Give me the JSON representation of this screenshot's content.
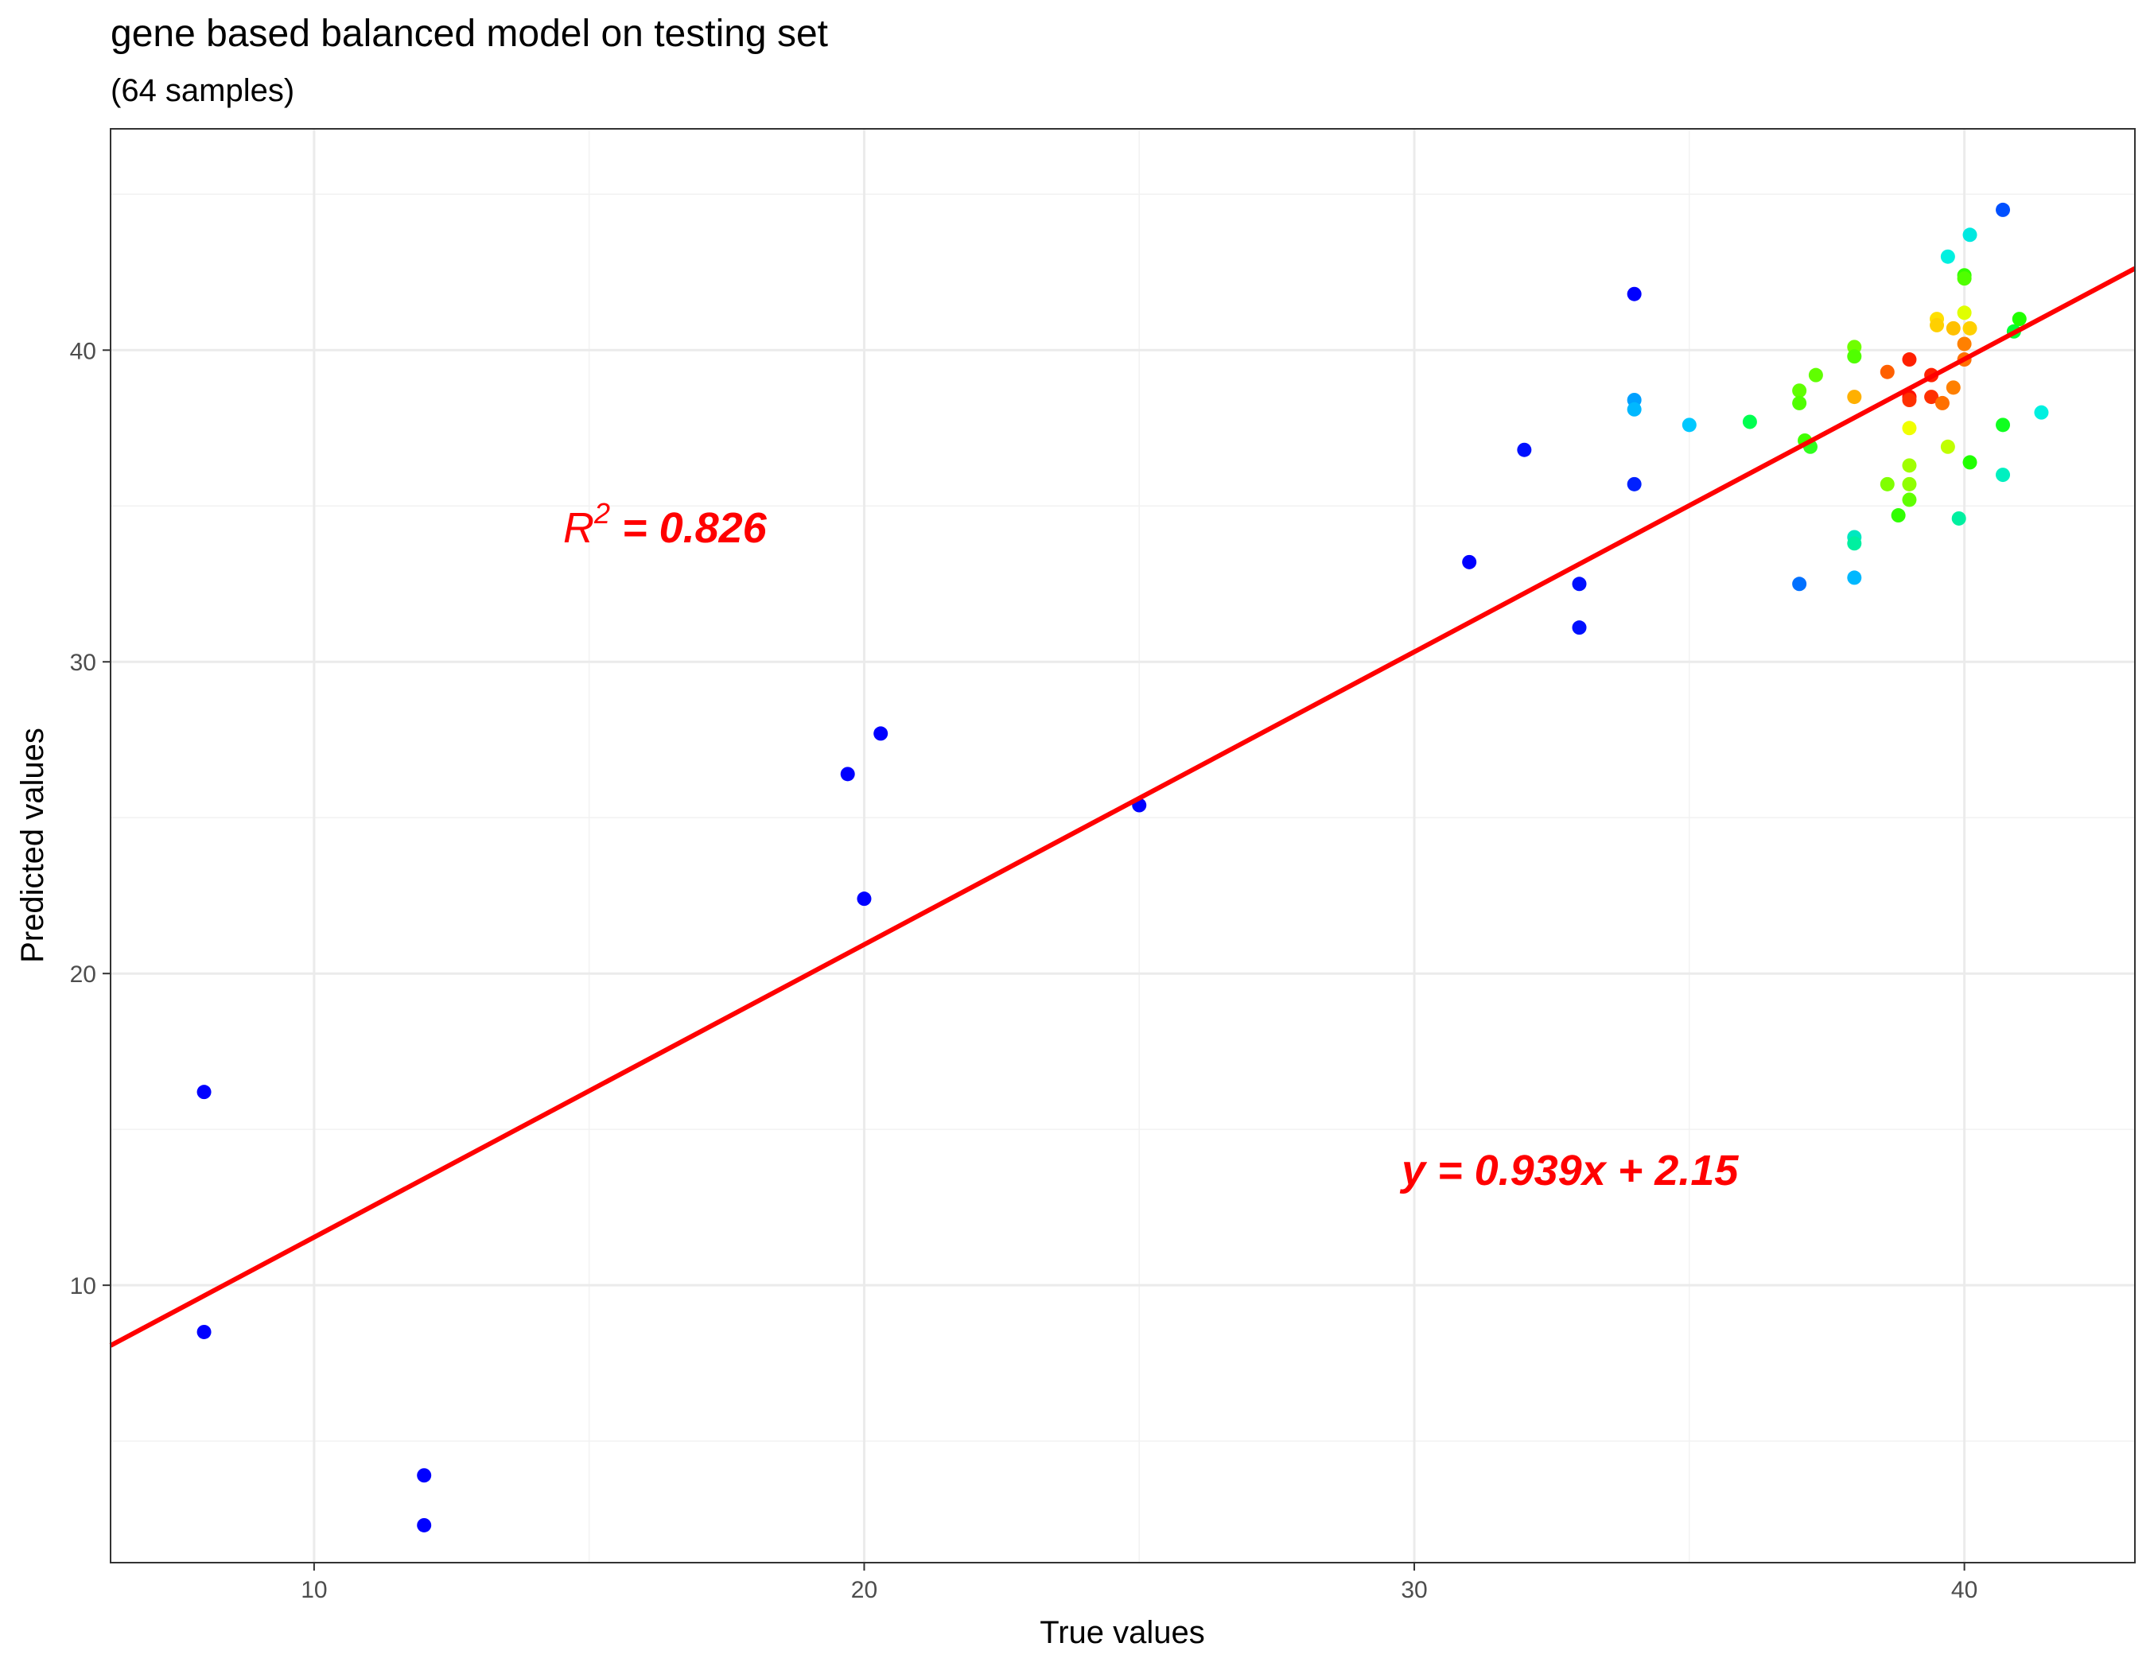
{
  "chart_data": {
    "type": "scatter",
    "title": "gene based balanced model on testing set",
    "subtitle": "(64 samples)",
    "xlabel": "True values",
    "ylabel": "Predicted values",
    "xlim": [
      6.3,
      43.1
    ],
    "ylim": [
      1.1,
      47.1
    ],
    "x_ticks": [
      "10",
      "20",
      "30",
      "40"
    ],
    "y_ticks": [
      "10",
      "20",
      "30",
      "40"
    ],
    "x_tick_values": [
      10,
      20,
      30,
      40
    ],
    "y_tick_values": [
      10,
      20,
      30,
      40
    ],
    "grid": true,
    "fit_line": {
      "slope": 0.939,
      "intercept": 2.15,
      "color": "#ff0000"
    },
    "annotations": {
      "r2_symbol": "R",
      "r2_exp": "2",
      "r2_value": " = 0.826",
      "equation": "y = 0.939x + 2.15"
    },
    "points": [
      {
        "x": 8,
        "y": 16.2,
        "c": "#0000ff"
      },
      {
        "x": 8,
        "y": 8.5,
        "c": "#0000ff"
      },
      {
        "x": 12,
        "y": 3.9,
        "c": "#0000ff"
      },
      {
        "x": 12,
        "y": 2.3,
        "c": "#0000ff"
      },
      {
        "x": 19.7,
        "y": 26.4,
        "c": "#0000ff"
      },
      {
        "x": 20,
        "y": 22.4,
        "c": "#0000ff"
      },
      {
        "x": 20.3,
        "y": 27.7,
        "c": "#0000ff"
      },
      {
        "x": 25,
        "y": 25.4,
        "c": "#0000ff"
      },
      {
        "x": 31,
        "y": 33.2,
        "c": "#0000ff"
      },
      {
        "x": 32,
        "y": 36.8,
        "c": "#0010ff"
      },
      {
        "x": 33,
        "y": 32.5,
        "c": "#0010ff"
      },
      {
        "x": 33,
        "y": 31.1,
        "c": "#0010ff"
      },
      {
        "x": 34,
        "y": 41.8,
        "c": "#0000ff"
      },
      {
        "x": 34,
        "y": 38.4,
        "c": "#00a0ff"
      },
      {
        "x": 34,
        "y": 38.1,
        "c": "#00b8ff"
      },
      {
        "x": 34,
        "y": 35.7,
        "c": "#0020ff"
      },
      {
        "x": 35,
        "y": 37.6,
        "c": "#00c8ff"
      },
      {
        "x": 36.1,
        "y": 37.7,
        "c": "#00ff50"
      },
      {
        "x": 37,
        "y": 38.7,
        "c": "#60ff00"
      },
      {
        "x": 37,
        "y": 38.3,
        "c": "#50ff00"
      },
      {
        "x": 37.1,
        "y": 37.1,
        "c": "#40ff00"
      },
      {
        "x": 37.2,
        "y": 36.9,
        "c": "#30ff20"
      },
      {
        "x": 37.3,
        "y": 39.2,
        "c": "#60ff00"
      },
      {
        "x": 37,
        "y": 32.5,
        "c": "#0070ff"
      },
      {
        "x": 38,
        "y": 40.1,
        "c": "#70ff00"
      },
      {
        "x": 38,
        "y": 39.8,
        "c": "#50ff00"
      },
      {
        "x": 38,
        "y": 38.5,
        "c": "#ffb000"
      },
      {
        "x": 38,
        "y": 34.0,
        "c": "#00e8c0"
      },
      {
        "x": 38,
        "y": 33.8,
        "c": "#00f0a0"
      },
      {
        "x": 38,
        "y": 32.7,
        "c": "#00b8ff"
      },
      {
        "x": 38.6,
        "y": 39.3,
        "c": "#ff6000"
      },
      {
        "x": 38.6,
        "y": 35.7,
        "c": "#80ff00"
      },
      {
        "x": 38.8,
        "y": 34.7,
        "c": "#30ff00"
      },
      {
        "x": 39,
        "y": 39.7,
        "c": "#ff2000"
      },
      {
        "x": 39,
        "y": 38.5,
        "c": "#ff1000"
      },
      {
        "x": 39,
        "y": 38.4,
        "c": "#ff3000"
      },
      {
        "x": 39,
        "y": 37.5,
        "c": "#f0ff00"
      },
      {
        "x": 39,
        "y": 36.3,
        "c": "#a0ff00"
      },
      {
        "x": 39,
        "y": 35.7,
        "c": "#90ff00"
      },
      {
        "x": 39,
        "y": 35.2,
        "c": "#60ff00"
      },
      {
        "x": 39.4,
        "y": 39.2,
        "c": "#ff2000"
      },
      {
        "x": 39.4,
        "y": 38.5,
        "c": "#ff3000"
      },
      {
        "x": 39.5,
        "y": 41.0,
        "c": "#ffe000"
      },
      {
        "x": 39.5,
        "y": 40.8,
        "c": "#ffd000"
      },
      {
        "x": 39.6,
        "y": 38.3,
        "c": "#ff7000"
      },
      {
        "x": 39.7,
        "y": 43.0,
        "c": "#00f0e0"
      },
      {
        "x": 39.7,
        "y": 36.9,
        "c": "#c0ff00"
      },
      {
        "x": 39.8,
        "y": 40.7,
        "c": "#ffc000"
      },
      {
        "x": 39.8,
        "y": 38.8,
        "c": "#ff8000"
      },
      {
        "x": 39.9,
        "y": 34.6,
        "c": "#00f0a0"
      },
      {
        "x": 40,
        "y": 42.4,
        "c": "#30ff00"
      },
      {
        "x": 40,
        "y": 42.3,
        "c": "#50ff00"
      },
      {
        "x": 40,
        "y": 41.2,
        "c": "#e0ff00"
      },
      {
        "x": 40,
        "y": 40.2,
        "c": "#ff8000"
      },
      {
        "x": 40,
        "y": 39.7,
        "c": "#ff7000"
      },
      {
        "x": 40.1,
        "y": 43.7,
        "c": "#00e8e0"
      },
      {
        "x": 40.1,
        "y": 36.4,
        "c": "#20ff00"
      },
      {
        "x": 40.7,
        "y": 44.5,
        "c": "#0050ff"
      },
      {
        "x": 40.7,
        "y": 37.6,
        "c": "#10ff20"
      },
      {
        "x": 40.7,
        "y": 36.0,
        "c": "#00f0c0"
      },
      {
        "x": 40.9,
        "y": 40.6,
        "c": "#00ff30"
      },
      {
        "x": 41,
        "y": 41.0,
        "c": "#20ff00"
      },
      {
        "x": 41.4,
        "y": 38.0,
        "c": "#00f0e0"
      },
      {
        "x": 40.1,
        "y": 40.7,
        "c": "#ffd000"
      }
    ]
  }
}
